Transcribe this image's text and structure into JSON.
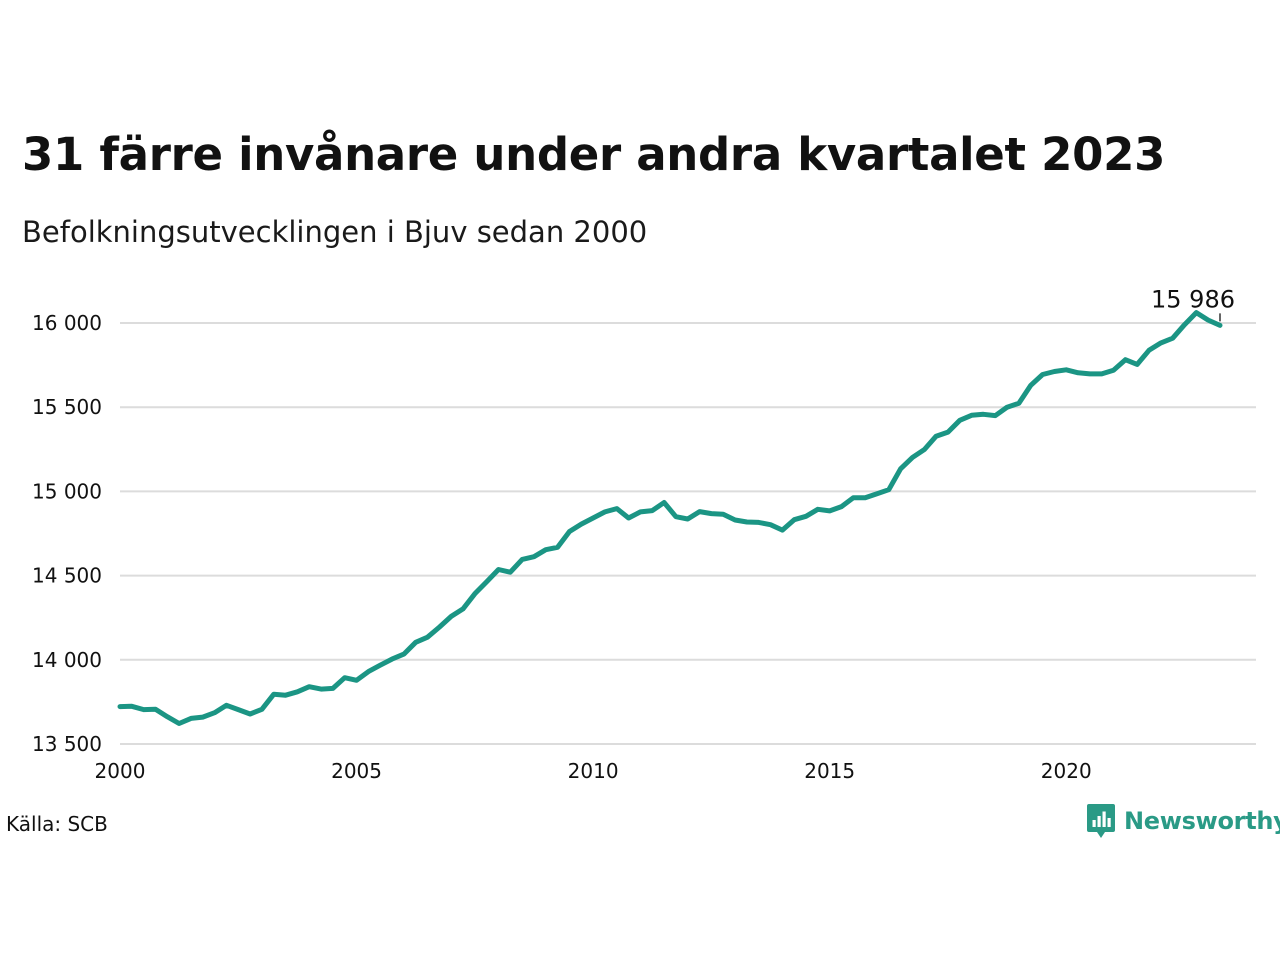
{
  "title": "31 färre invånare under andra kvartalet 2023",
  "subtitle": "Befolkningsutvecklingen i Bjuv sedan 2000",
  "source": "Källa: SCB",
  "brand": {
    "name": "Newsworthy",
    "icon": "newsworthy-logo-icon",
    "color": "#2a9a86"
  },
  "colors": {
    "line": "#1b9584",
    "grid": "#dcdcdc",
    "text": "#111111"
  },
  "chart_data": {
    "type": "line",
    "title": "31 färre invånare under andra kvartalet 2023",
    "subtitle": "Befolkningsutvecklingen i Bjuv sedan 2000",
    "xlabel": "",
    "ylabel": "",
    "xlim": [
      2000,
      2024
    ],
    "ylim": [
      13500,
      16150
    ],
    "x_ticks": [
      2000,
      2005,
      2010,
      2015,
      2020
    ],
    "x_tick_labels": [
      "2000",
      "2005",
      "2010",
      "2015",
      "2020"
    ],
    "y_ticks": [
      13500,
      14000,
      14500,
      15000,
      15500,
      16000
    ],
    "y_tick_labels": [
      "13 500",
      "14 000",
      "14 500",
      "15 000",
      "15 500",
      "16 000"
    ],
    "grid": "horizontal",
    "frequency": "quarterly",
    "annotation": {
      "x": 2023.25,
      "y": 15986,
      "text": "15 986"
    },
    "series": [
      {
        "x": [
          2000,
          2000.25,
          2000.5,
          2000.75,
          2001,
          2001.25,
          2001.5,
          2001.75,
          2002,
          2002.25,
          2002.5,
          2002.75,
          2003,
          2003.25,
          2003.5,
          2003.75,
          2004,
          2004.25,
          2004.5,
          2004.75,
          2005,
          2005.25,
          2005.5,
          2005.75,
          2006,
          2006.25,
          2006.5,
          2006.75,
          2007,
          2007.25,
          2007.5,
          2007.75,
          2008,
          2008.25,
          2008.5,
          2008.75,
          2009,
          2009.25,
          2009.5,
          2009.75,
          2010,
          2010.25,
          2010.5,
          2010.75,
          2011,
          2011.25,
          2011.5,
          2011.75,
          2012,
          2012.25,
          2012.5,
          2012.75,
          2013,
          2013.25,
          2013.5,
          2013.75,
          2014,
          2014.25,
          2014.5,
          2014.75,
          2015,
          2015.25,
          2015.5,
          2015.75,
          2016,
          2016.25,
          2016.5,
          2016.75,
          2017,
          2017.25,
          2017.5,
          2017.75,
          2018,
          2018.25,
          2018.5,
          2018.75,
          2019,
          2019.25,
          2019.5,
          2019.75,
          2020,
          2020.25,
          2020.5,
          2020.75,
          2021,
          2021.25,
          2021.5,
          2021.75,
          2022,
          2022.25,
          2022.5,
          2022.75,
          2023,
          2023.25
        ],
        "values": [
          13722,
          13724,
          13704,
          13706,
          13662,
          13622,
          13652,
          13660,
          13686,
          13730,
          13704,
          13678,
          13706,
          13796,
          13790,
          13810,
          13840,
          13826,
          13830,
          13894,
          13878,
          13930,
          13968,
          14004,
          14034,
          14104,
          14134,
          14194,
          14258,
          14302,
          14392,
          14464,
          14536,
          14520,
          14596,
          14612,
          14654,
          14668,
          14762,
          14806,
          14842,
          14878,
          14898,
          14842,
          14878,
          14886,
          14934,
          14850,
          14836,
          14880,
          14868,
          14864,
          14830,
          14818,
          14816,
          14802,
          14770,
          14832,
          14852,
          14894,
          14884,
          14910,
          14962,
          14962,
          14986,
          15010,
          15134,
          15202,
          15248,
          15328,
          15352,
          15422,
          15452,
          15458,
          15450,
          15500,
          15524,
          15630,
          15694,
          15712,
          15722,
          15704,
          15698,
          15698,
          15720,
          15782,
          15754,
          15838,
          15882,
          15910,
          15990,
          16062,
          16017,
          15986
        ]
      }
    ]
  }
}
